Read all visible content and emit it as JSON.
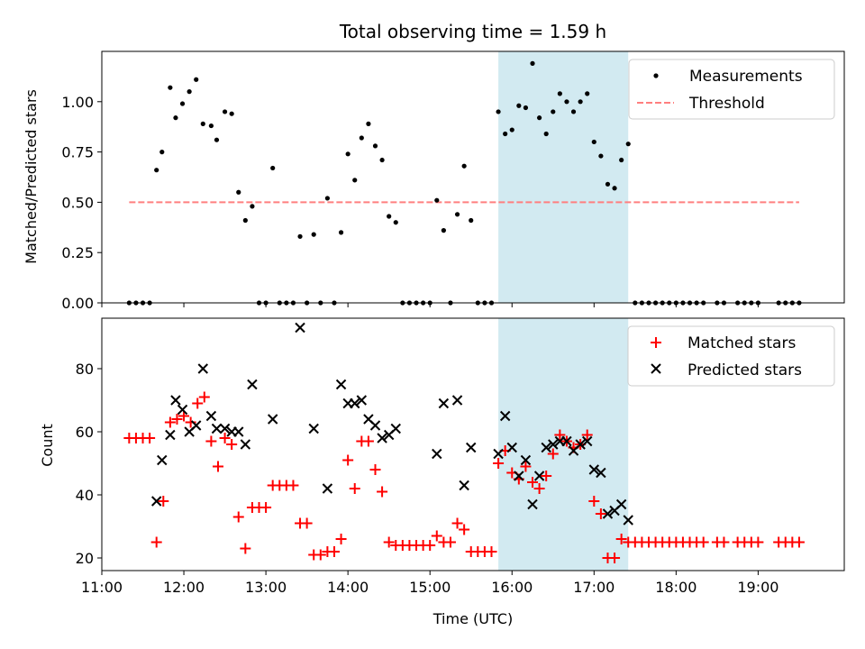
{
  "chart_data": [
    {
      "type": "scatter",
      "title": "Total observing time = 1.59 h",
      "ylabel": "Matched/Predicted stars",
      "xlim": [
        "11:00",
        "20:03"
      ],
      "ylim": [
        0,
        1.25
      ],
      "yticks": [
        "0.00",
        "0.25",
        "0.50",
        "0.75",
        "1.00"
      ],
      "shaded_span": [
        "15:50",
        "17:25"
      ],
      "shade_color": "#add8e6",
      "legend_position": "upper right",
      "legend": [
        "Measurements",
        "Threshold"
      ],
      "threshold": {
        "name": "Threshold",
        "x": [
          "11:20",
          "19:30"
        ],
        "y": 0.5,
        "color": "#ff7f7f",
        "style": "dashed"
      },
      "series": [
        {
          "name": "Measurements",
          "marker": "dot",
          "color": "#000000",
          "points": [
            [
              "11:20",
              0
            ],
            [
              "11:25",
              0
            ],
            [
              "11:30",
              0
            ],
            [
              "11:35",
              0
            ],
            [
              "11:40",
              0.66
            ],
            [
              "11:44",
              0.75
            ],
            [
              "11:50",
              1.07
            ],
            [
              "11:54",
              0.92
            ],
            [
              "11:59",
              0.99
            ],
            [
              "12:04",
              1.05
            ],
            [
              "12:09",
              1.11
            ],
            [
              "12:14",
              0.89
            ],
            [
              "12:20",
              0.88
            ],
            [
              "12:24",
              0.81
            ],
            [
              "12:30",
              0.95
            ],
            [
              "12:35",
              0.94
            ],
            [
              "12:40",
              0.55
            ],
            [
              "12:45",
              0.41
            ],
            [
              "12:50",
              0.48
            ],
            [
              "12:55",
              0
            ],
            [
              "13:00",
              0
            ],
            [
              "13:05",
              0.67
            ],
            [
              "13:10",
              0
            ],
            [
              "13:15",
              0
            ],
            [
              "13:20",
              0
            ],
            [
              "13:25",
              0.33
            ],
            [
              "13:30",
              0
            ],
            [
              "13:35",
              0.34
            ],
            [
              "13:40",
              0
            ],
            [
              "13:45",
              0.52
            ],
            [
              "13:50",
              0
            ],
            [
              "13:55",
              0.35
            ],
            [
              "14:00",
              0.74
            ],
            [
              "14:05",
              0.61
            ],
            [
              "14:10",
              0.82
            ],
            [
              "14:15",
              0.89
            ],
            [
              "14:20",
              0.78
            ],
            [
              "14:25",
              0.71
            ],
            [
              "14:30",
              0.43
            ],
            [
              "14:35",
              0.4
            ],
            [
              "14:40",
              0
            ],
            [
              "14:45",
              0
            ],
            [
              "14:50",
              0
            ],
            [
              "14:55",
              0
            ],
            [
              "15:00",
              0
            ],
            [
              "15:05",
              0.51
            ],
            [
              "15:10",
              0.36
            ],
            [
              "15:15",
              0
            ],
            [
              "15:20",
              0.44
            ],
            [
              "15:25",
              0.68
            ],
            [
              "15:30",
              0.41
            ],
            [
              "15:35",
              0
            ],
            [
              "15:40",
              0
            ],
            [
              "15:45",
              0
            ],
            [
              "15:50",
              0.95
            ],
            [
              "15:55",
              0.84
            ],
            [
              "16:00",
              0.86
            ],
            [
              "16:05",
              0.98
            ],
            [
              "16:10",
              0.97
            ],
            [
              "16:15",
              1.19
            ],
            [
              "16:20",
              0.92
            ],
            [
              "16:25",
              0.84
            ],
            [
              "16:30",
              0.95
            ],
            [
              "16:35",
              1.04
            ],
            [
              "16:40",
              1.0
            ],
            [
              "16:45",
              0.95
            ],
            [
              "16:50",
              1.0
            ],
            [
              "16:55",
              1.04
            ],
            [
              "17:00",
              0.8
            ],
            [
              "17:05",
              0.73
            ],
            [
              "17:10",
              0.59
            ],
            [
              "17:15",
              0.57
            ],
            [
              "17:20",
              0.71
            ],
            [
              "17:25",
              0.79
            ],
            [
              "17:30",
              0
            ],
            [
              "17:35",
              0
            ],
            [
              "17:40",
              0
            ],
            [
              "17:45",
              0
            ],
            [
              "17:50",
              0
            ],
            [
              "17:55",
              0
            ],
            [
              "18:00",
              0
            ],
            [
              "18:05",
              0
            ],
            [
              "18:10",
              0
            ],
            [
              "18:15",
              0
            ],
            [
              "18:20",
              0
            ],
            [
              "18:30",
              0
            ],
            [
              "18:35",
              0
            ],
            [
              "18:45",
              0
            ],
            [
              "18:50",
              0
            ],
            [
              "18:55",
              0
            ],
            [
              "19:00",
              0
            ],
            [
              "19:15",
              0
            ],
            [
              "19:20",
              0
            ],
            [
              "19:25",
              0
            ],
            [
              "19:30",
              0
            ]
          ]
        }
      ]
    },
    {
      "type": "scatter",
      "xlabel": "Time (UTC)",
      "ylabel": "Count",
      "xlim": [
        "11:00",
        "20:03"
      ],
      "ylim": [
        16,
        96
      ],
      "yticks": [
        20,
        40,
        60,
        80
      ],
      "xticks": [
        "11:00",
        "12:00",
        "13:00",
        "14:00",
        "15:00",
        "16:00",
        "17:00",
        "18:00",
        "19:00"
      ],
      "shaded_span": [
        "15:50",
        "17:25"
      ],
      "shade_color": "#add8e6",
      "legend_position": "upper right",
      "legend": [
        "Matched stars",
        "Predicted stars"
      ],
      "series": [
        {
          "name": "Matched stars",
          "marker": "plus",
          "color": "#ff0000",
          "points": [
            [
              "11:20",
              58
            ],
            [
              "11:25",
              58
            ],
            [
              "11:30",
              58
            ],
            [
              "11:35",
              58
            ],
            [
              "11:40",
              25
            ],
            [
              "11:45",
              38
            ],
            [
              "11:50",
              63
            ],
            [
              "11:55",
              64
            ],
            [
              "12:00",
              65
            ],
            [
              "12:05",
              63
            ],
            [
              "12:10",
              69
            ],
            [
              "12:15",
              71
            ],
            [
              "12:20",
              57
            ],
            [
              "12:25",
              49
            ],
            [
              "12:30",
              58
            ],
            [
              "12:35",
              56
            ],
            [
              "12:40",
              33
            ],
            [
              "12:45",
              23
            ],
            [
              "12:50",
              36
            ],
            [
              "12:55",
              36
            ],
            [
              "13:00",
              36
            ],
            [
              "13:05",
              43
            ],
            [
              "13:10",
              43
            ],
            [
              "13:15",
              43
            ],
            [
              "13:20",
              43
            ],
            [
              "13:25",
              31
            ],
            [
              "13:30",
              31
            ],
            [
              "13:35",
              21
            ],
            [
              "13:40",
              21
            ],
            [
              "13:45",
              22
            ],
            [
              "13:50",
              22
            ],
            [
              "13:55",
              26
            ],
            [
              "14:00",
              51
            ],
            [
              "14:05",
              42
            ],
            [
              "14:10",
              57
            ],
            [
              "14:15",
              57
            ],
            [
              "14:20",
              48
            ],
            [
              "14:25",
              41
            ],
            [
              "14:30",
              25
            ],
            [
              "14:35",
              24
            ],
            [
              "14:40",
              24
            ],
            [
              "14:45",
              24
            ],
            [
              "14:50",
              24
            ],
            [
              "14:55",
              24
            ],
            [
              "15:00",
              24
            ],
            [
              "15:05",
              27
            ],
            [
              "15:10",
              25
            ],
            [
              "15:15",
              25
            ],
            [
              "15:20",
              31
            ],
            [
              "15:25",
              29
            ],
            [
              "15:30",
              22
            ],
            [
              "15:35",
              22
            ],
            [
              "15:40",
              22
            ],
            [
              "15:45",
              22
            ],
            [
              "15:50",
              50
            ],
            [
              "15:55",
              54
            ],
            [
              "16:00",
              47
            ],
            [
              "16:05",
              45
            ],
            [
              "16:10",
              49
            ],
            [
              "16:15",
              44
            ],
            [
              "16:20",
              42
            ],
            [
              "16:25",
              46
            ],
            [
              "16:30",
              53
            ],
            [
              "16:35",
              59
            ],
            [
              "16:40",
              57
            ],
            [
              "16:45",
              55
            ],
            [
              "16:50",
              56
            ],
            [
              "16:55",
              59
            ],
            [
              "17:00",
              38
            ],
            [
              "17:05",
              34
            ],
            [
              "17:10",
              20
            ],
            [
              "17:15",
              20
            ],
            [
              "17:20",
              26
            ],
            [
              "17:25",
              25
            ],
            [
              "17:30",
              25
            ],
            [
              "17:35",
              25
            ],
            [
              "17:40",
              25
            ],
            [
              "17:45",
              25
            ],
            [
              "17:50",
              25
            ],
            [
              "17:55",
              25
            ],
            [
              "18:00",
              25
            ],
            [
              "18:05",
              25
            ],
            [
              "18:10",
              25
            ],
            [
              "18:15",
              25
            ],
            [
              "18:20",
              25
            ],
            [
              "18:30",
              25
            ],
            [
              "18:35",
              25
            ],
            [
              "18:45",
              25
            ],
            [
              "18:50",
              25
            ],
            [
              "18:55",
              25
            ],
            [
              "19:00",
              25
            ],
            [
              "19:15",
              25
            ],
            [
              "19:20",
              25
            ],
            [
              "19:25",
              25
            ],
            [
              "19:30",
              25
            ]
          ]
        },
        {
          "name": "Predicted stars",
          "marker": "x",
          "color": "#000000",
          "points": [
            [
              "11:40",
              38
            ],
            [
              "11:44",
              51
            ],
            [
              "11:50",
              59
            ],
            [
              "11:54",
              70
            ],
            [
              "11:59",
              67
            ],
            [
              "12:04",
              60
            ],
            [
              "12:09",
              62
            ],
            [
              "12:14",
              80
            ],
            [
              "12:20",
              65
            ],
            [
              "12:24",
              61
            ],
            [
              "12:30",
              61
            ],
            [
              "12:35",
              60
            ],
            [
              "12:40",
              60
            ],
            [
              "12:45",
              56
            ],
            [
              "12:50",
              75
            ],
            [
              "13:05",
              64
            ],
            [
              "13:25",
              93
            ],
            [
              "13:35",
              61
            ],
            [
              "13:45",
              42
            ],
            [
              "13:55",
              75
            ],
            [
              "14:00",
              69
            ],
            [
              "14:05",
              69
            ],
            [
              "14:10",
              70
            ],
            [
              "14:15",
              64
            ],
            [
              "14:20",
              62
            ],
            [
              "14:25",
              58
            ],
            [
              "14:30",
              59
            ],
            [
              "14:35",
              61
            ],
            [
              "15:05",
              53
            ],
            [
              "15:10",
              69
            ],
            [
              "15:20",
              70
            ],
            [
              "15:25",
              43
            ],
            [
              "15:30",
              55
            ],
            [
              "15:50",
              53
            ],
            [
              "15:55",
              65
            ],
            [
              "16:00",
              55
            ],
            [
              "16:05",
              46
            ],
            [
              "16:10",
              51
            ],
            [
              "16:15",
              37
            ],
            [
              "16:20",
              46
            ],
            [
              "16:25",
              55
            ],
            [
              "16:30",
              56
            ],
            [
              "16:35",
              57
            ],
            [
              "16:40",
              57
            ],
            [
              "16:45",
              54
            ],
            [
              "16:50",
              56
            ],
            [
              "16:55",
              57
            ],
            [
              "17:00",
              48
            ],
            [
              "17:05",
              47
            ],
            [
              "17:10",
              34
            ],
            [
              "17:15",
              35
            ],
            [
              "17:20",
              37
            ],
            [
              "17:25",
              32
            ]
          ]
        }
      ]
    }
  ]
}
